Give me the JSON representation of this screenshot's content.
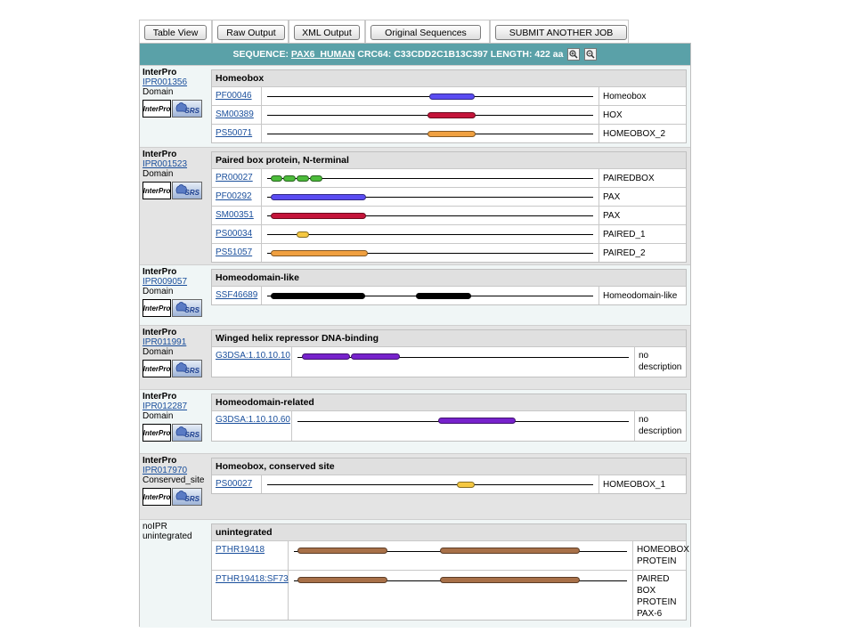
{
  "toolbar": {
    "buttons": [
      "Table View",
      "Raw Output",
      "XML Output",
      "Original Sequences",
      "SUBMIT ANOTHER JOB"
    ]
  },
  "sequence": {
    "prefix": "SEQUENCE:",
    "name": "PAX6_HUMAN",
    "crc": "CRC64: C33CDD2C1B13C397",
    "length": "LENGTH: 422 aa",
    "length_aa": 422
  },
  "logos": {
    "interpro": "InterPro",
    "srs": "SRS"
  },
  "colors": {
    "blue": "#5a4cf2",
    "red": "#c4143a",
    "orange": "#f0a040",
    "green": "#4cbb3a",
    "yellow": "#f5c842",
    "black": "#000000",
    "purple": "#7722cc",
    "brown": "#a87048",
    "header_bar": "#5aa1a8"
  },
  "groups": [
    {
      "type": "InterPro",
      "id": "IPR001356",
      "kind": "Domain",
      "title": "Homeobox",
      "narrow": true,
      "matches": [
        {
          "acc": "PF00046",
          "desc": "Homeobox",
          "color": "blue",
          "segs": [
            [
              210,
              269
            ]
          ]
        },
        {
          "acc": "SM00389",
          "desc": "HOX",
          "color": "red",
          "segs": [
            [
              208,
              270
            ]
          ]
        },
        {
          "acc": "PS50071",
          "desc": "HOMEOBOX_2",
          "color": "orange",
          "segs": [
            [
              208,
              270
            ]
          ]
        }
      ]
    },
    {
      "type": "InterPro",
      "id": "IPR001523",
      "kind": "Domain",
      "title": "Paired box protein, N-terminal",
      "narrow": true,
      "matches": [
        {
          "acc": "PR00027",
          "desc": "PAIREDBOX",
          "color": "green",
          "segs": [
            [
              4,
              20
            ],
            [
              21,
              37
            ],
            [
              38,
              54
            ],
            [
              55,
              72
            ]
          ]
        },
        {
          "acc": "PF00292",
          "desc": "PAX",
          "color": "blue",
          "segs": [
            [
              4,
              128
            ]
          ]
        },
        {
          "acc": "SM00351",
          "desc": "PAX",
          "color": "red",
          "segs": [
            [
              4,
              128
            ]
          ]
        },
        {
          "acc": "PS00034",
          "desc": "PAIRED_1",
          "color": "yellow",
          "segs": [
            [
              38,
              54
            ]
          ]
        },
        {
          "acc": "PS51057",
          "desc": "PAIRED_2",
          "color": "orange",
          "segs": [
            [
              4,
              130
            ]
          ]
        }
      ]
    },
    {
      "type": "InterPro",
      "id": "IPR009057",
      "kind": "Domain",
      "title": "Homeodomain-like",
      "narrow": true,
      "matches": [
        {
          "acc": "SSF46689",
          "desc": "Homeodomain-like",
          "color": "black",
          "segs": [
            [
              4,
              127
            ],
            [
              193,
              264
            ]
          ]
        }
      ]
    },
    {
      "type": "InterPro",
      "id": "IPR011991",
      "kind": "Domain",
      "title": "Winged helix repressor DNA-binding",
      "narrow": false,
      "matches": [
        {
          "acc": "G3DSA:1.10.10.10",
          "desc": "no description",
          "color": "purple",
          "segs": [
            [
              6,
              67
            ],
            [
              68,
              131
            ]
          ]
        }
      ]
    },
    {
      "type": "InterPro",
      "id": "IPR012287",
      "kind": "Domain",
      "title": "Homeodomain-related",
      "narrow": false,
      "matches": [
        {
          "acc": "G3DSA:1.10.10.60",
          "desc": "no description",
          "color": "purple",
          "segs": [
            [
              179,
              278
            ]
          ]
        }
      ]
    },
    {
      "type": "InterPro",
      "id": "IPR017970",
      "kind": "Conserved_site",
      "title": "Homeobox, conserved site",
      "narrow": true,
      "matches": [
        {
          "acc": "PS00027",
          "desc": "HOMEOBOX_1",
          "color": "yellow",
          "segs": [
            [
              246,
              269
            ]
          ]
        }
      ]
    },
    {
      "type": "noIPR",
      "label1": "noIPR",
      "label2": "unintegrated",
      "title": "unintegrated",
      "narrow": false,
      "wide": true,
      "matches": [
        {
          "acc": "PTHR19418",
          "desc": "HOMEOBOX PROTEIN",
          "color": "brown",
          "segs": [
            [
              4,
              119
            ],
            [
              185,
              362
            ]
          ]
        },
        {
          "acc": "PTHR19418:SF73",
          "desc": "PAIRED BOX PROTEIN PAX-6",
          "color": "brown",
          "segs": [
            [
              4,
              119
            ],
            [
              185,
              362
            ]
          ]
        }
      ]
    }
  ]
}
